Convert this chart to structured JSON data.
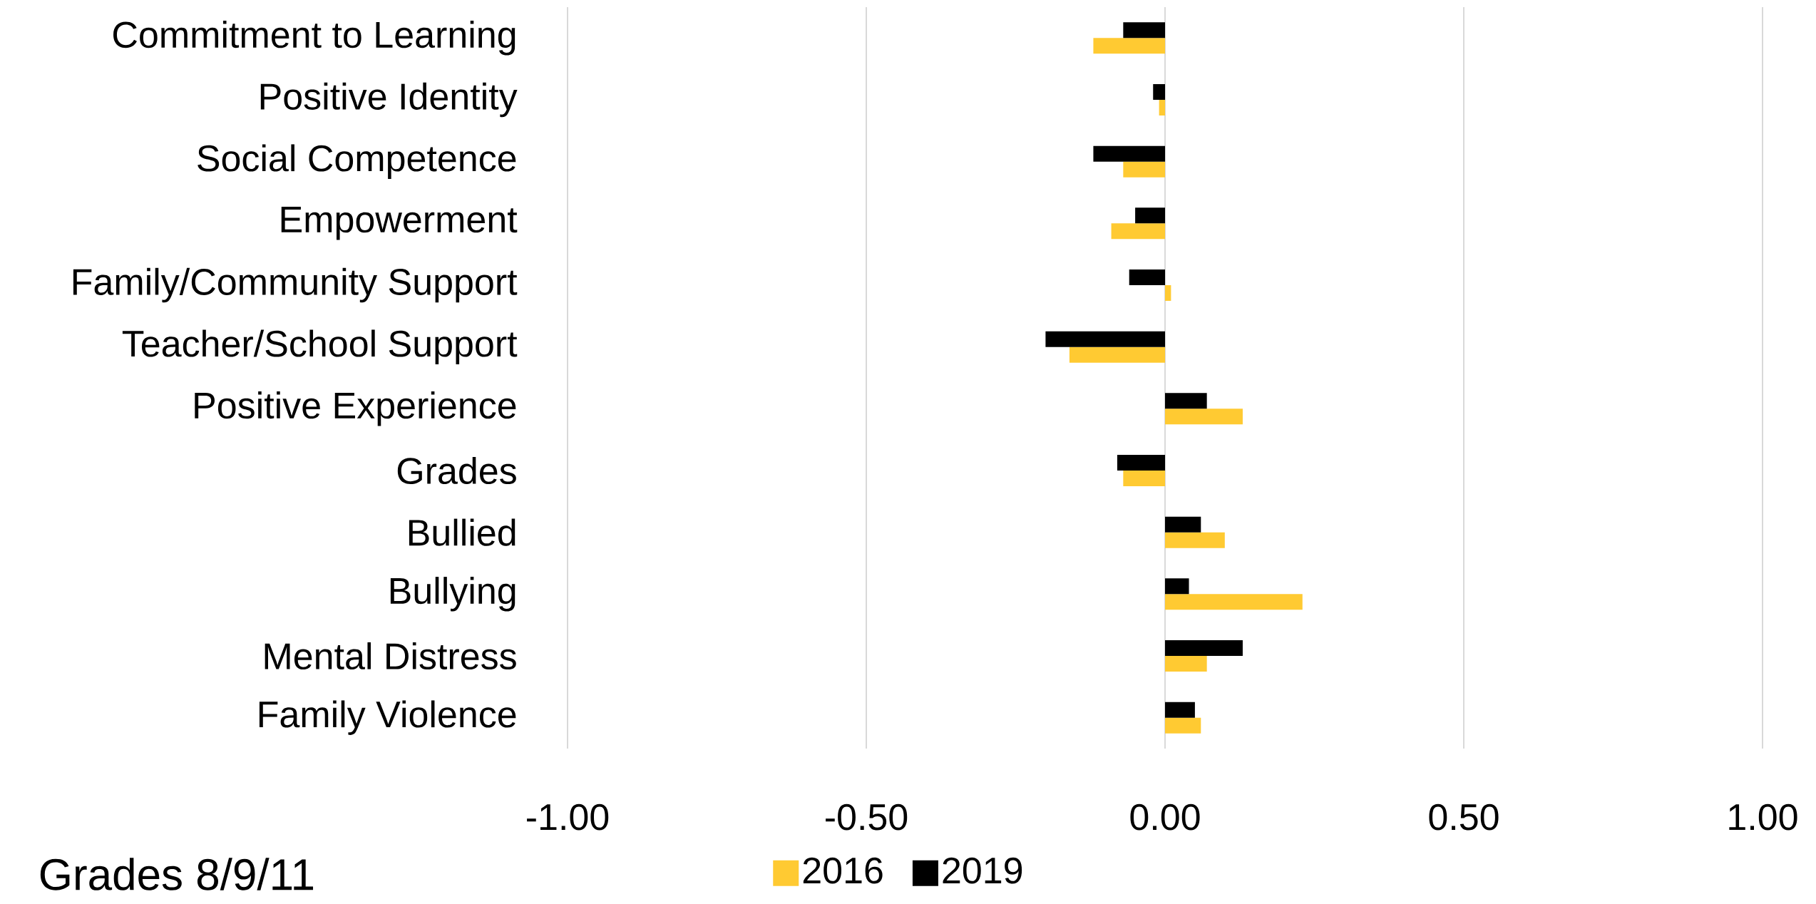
{
  "chart_data": {
    "type": "bar",
    "orientation": "horizontal",
    "categories": [
      "Commitment to Learning",
      "Positive Identity",
      "Social Competence",
      "Empowerment",
      "Family/Community Support",
      "Teacher/School Support",
      "Positive Experience",
      "Grades",
      "Bullied",
      "Bullying",
      "Mental Distress",
      "Family Violence"
    ],
    "series": [
      {
        "name": "2016",
        "color": "#ffca32",
        "values": [
          -0.12,
          -0.01,
          -0.07,
          -0.09,
          0.01,
          -0.16,
          0.13,
          -0.07,
          0.1,
          0.23,
          0.07,
          0.06
        ]
      },
      {
        "name": "2019",
        "color": "#000000",
        "values": [
          -0.07,
          -0.02,
          -0.12,
          -0.05,
          -0.06,
          -0.2,
          0.07,
          -0.08,
          0.06,
          0.04,
          0.13,
          0.05
        ]
      }
    ],
    "xlim": [
      -1,
      1
    ],
    "xticks": [
      {
        "value": -1,
        "label": "-1.00"
      },
      {
        "value": -0.5,
        "label": "-0.50"
      },
      {
        "value": 0,
        "label": "0.00"
      },
      {
        "value": 0.5,
        "label": "0.50"
      },
      {
        "value": 1,
        "label": "1.00"
      }
    ],
    "grid": "x",
    "legend": "bottom",
    "annotations": [
      "Grades 8/9/11"
    ]
  }
}
